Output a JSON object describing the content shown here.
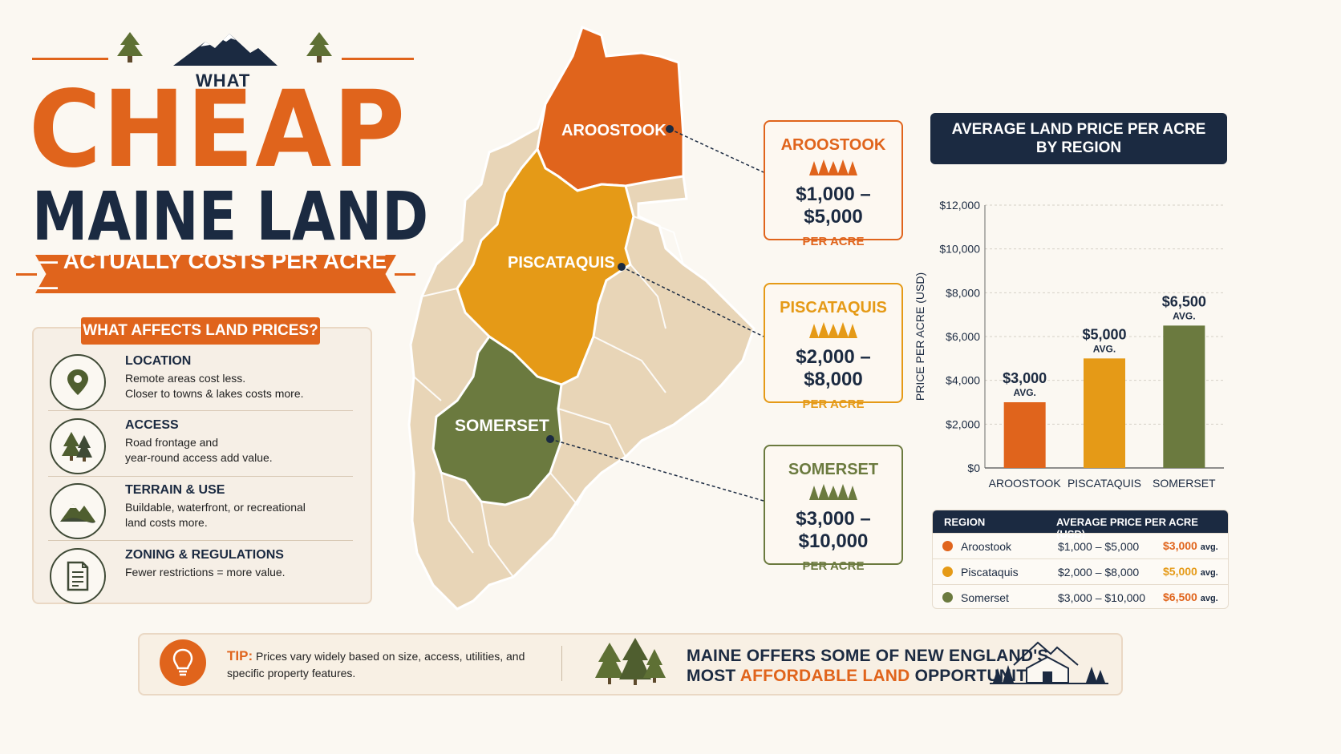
{
  "title": {
    "what": "WHAT",
    "cheap": "CHEAP",
    "maine_land": "MAINE LAND",
    "subtitle": "— ACTUALLY COSTS PER ACRE —"
  },
  "factors": {
    "heading": "WHAT AFFECTS LAND PRICES?",
    "items": [
      {
        "icon": "map-pin-icon",
        "title": "LOCATION",
        "body": "Remote areas cost less.\nCloser to towns & lakes costs more."
      },
      {
        "icon": "pine-trees-icon",
        "title": "ACCESS",
        "body": "Road frontage and\nyear-round access add value."
      },
      {
        "icon": "mountains-icon",
        "title": "TERRAIN & USE",
        "body": "Buildable, waterfront, or recreational\nland costs more."
      },
      {
        "icon": "document-icon",
        "title": "ZONING & REGULATIONS",
        "body": "Fewer restrictions = more value."
      }
    ]
  },
  "map": {
    "labels": [
      "AROOSTOOK",
      "PISCATAQUIS",
      "SOMERSET"
    ]
  },
  "price_cards": [
    {
      "name": "AROOSTOOK",
      "range": "$1,000 – $5,000",
      "unit": "PER ACRE",
      "color": "#e0641c"
    },
    {
      "name": "PISCATAQUIS",
      "range": "$2,000 – $8,000",
      "unit": "PER ACRE",
      "color": "#e59a17"
    },
    {
      "name": "SOMERSET",
      "range": "$3,000 – $10,000",
      "unit": "PER ACRE",
      "color": "#6b7a3f"
    }
  ],
  "chart_heading": {
    "line1": "AVERAGE LAND PRICE PER ACRE",
    "line2": "BY REGION"
  },
  "chart_data": {
    "type": "bar",
    "categories": [
      "AROOSTOOK",
      "PISCATAQUIS",
      "SOMERSET"
    ],
    "values": [
      3000,
      5000,
      6500
    ],
    "value_labels": [
      "$3,000",
      "$5,000",
      "$6,500"
    ],
    "value_sublabel": "AVG.",
    "colors": [
      "#e0641c",
      "#e59a17",
      "#6b7a3f"
    ],
    "ylabel": "PRICE PER ACRE (USD)",
    "ylim": [
      0,
      12000
    ],
    "yticks": [
      0,
      2000,
      4000,
      6000,
      8000,
      10000,
      12000
    ],
    "ytick_labels": [
      "$0",
      "$2,000",
      "$4,000",
      "$6,000",
      "$8,000",
      "$10,000",
      "$12,000"
    ],
    "grid": true
  },
  "table": {
    "headers": [
      "REGION",
      "AVERAGE PRICE PER ACRE (USD)"
    ],
    "rows": [
      {
        "region": "Aroostook",
        "range": "$1,000 – $5,000",
        "avg": "$3,000",
        "avg_suffix": "avg.",
        "color": "#e0641c"
      },
      {
        "region": "Piscataquis",
        "range": "$2,000 – $8,000",
        "avg": "$5,000",
        "avg_suffix": "avg.",
        "color": "#e59a17"
      },
      {
        "region": "Somerset",
        "range": "$3,000 – $10,000",
        "avg": "$6,500",
        "avg_suffix": "avg.",
        "color": "#6b7a3f"
      }
    ]
  },
  "banner": {
    "tip_label": "TIP:",
    "tip_text": "Prices vary widely based on size, access, utilities, and specific property features.",
    "msg_line1": "MAINE OFFERS SOME OF NEW ENGLAND'S",
    "msg_line2_pre": "MOST ",
    "msg_line2_hl": "AFFORDABLE LAND",
    "msg_line2_post": " OPPORTUNITIES."
  }
}
